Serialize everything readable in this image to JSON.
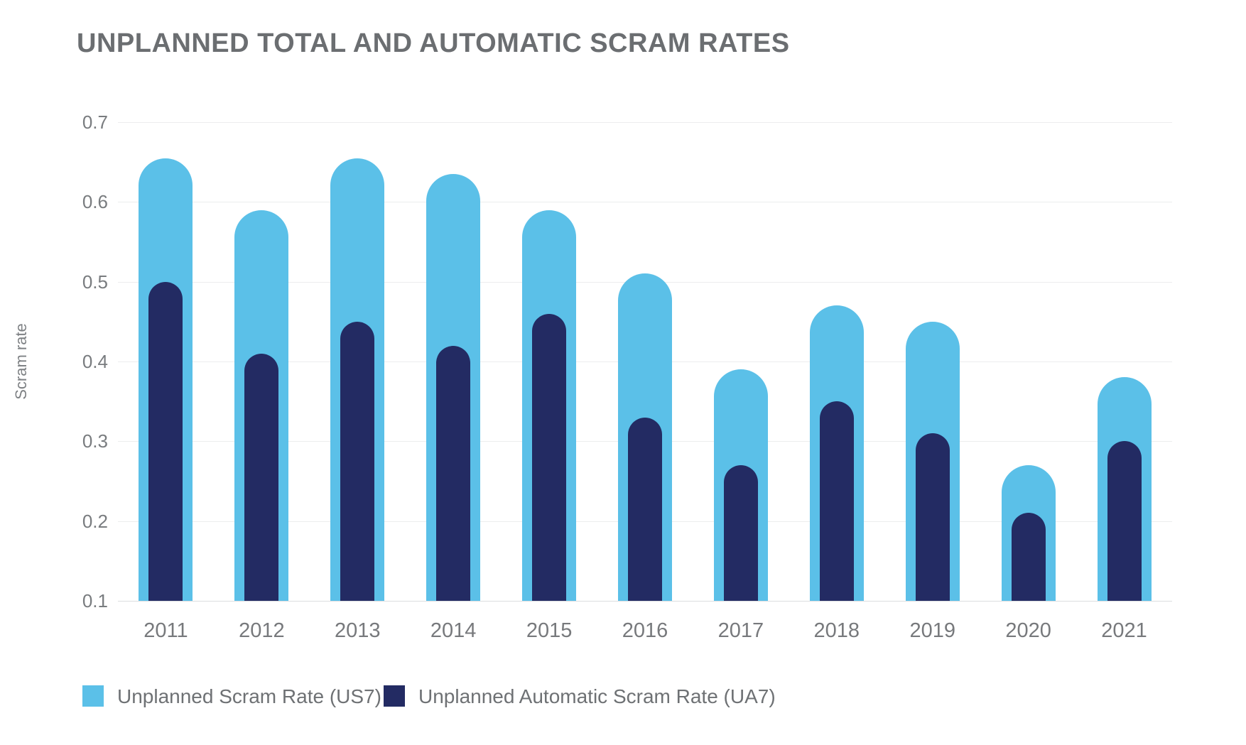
{
  "title": "UNPLANNED TOTAL AND AUTOMATIC SCRAM RATES",
  "colors": {
    "us7_bar": "#5BC0E8",
    "ua7_bar": "#232B63",
    "title_text": "#6B6E71",
    "axis_text": "#797C7F",
    "gridline": "#ECEDEE"
  },
  "y_axis": {
    "label": "Scram rate",
    "tick_labels": [
      "0.7",
      "0.6",
      "0.5",
      "0.4",
      "0.3",
      "0.2",
      "0.1"
    ]
  },
  "legend": {
    "items": [
      {
        "id": "us7",
        "label": "Unplanned Scram Rate (US7)",
        "color": "#5BC0E8",
        "offset_left": 0
      },
      {
        "id": "ua7",
        "label": "Unplanned Automatic Scram Rate (UA7)",
        "color": "#232B63",
        "offset_left": 424
      }
    ]
  },
  "chart_data": {
    "type": "bar",
    "title": "UNPLANNED TOTAL AND AUTOMATIC SCRAM RATES",
    "categories": [
      "2011",
      "2012",
      "2013",
      "2014",
      "2015",
      "2016",
      "2017",
      "2018",
      "2019",
      "2020",
      "2021"
    ],
    "series": [
      {
        "name": "Unplanned Scram Rate (US7)",
        "color": "#5BC0E8",
        "values": [
          0.655,
          0.59,
          0.655,
          0.635,
          0.59,
          0.51,
          0.39,
          0.47,
          0.45,
          0.27,
          0.38
        ]
      },
      {
        "name": "Unplanned Automatic Scram Rate (UA7)",
        "color": "#232B63",
        "values": [
          0.5,
          0.41,
          0.45,
          0.42,
          0.46,
          0.33,
          0.27,
          0.35,
          0.31,
          0.21,
          0.3
        ]
      }
    ],
    "xlabel": "",
    "ylabel": "Scram rate",
    "ylim": [
      0.1,
      0.7
    ],
    "y_tick_step": 0.1,
    "grid": true,
    "legend_position": "bottom-left",
    "bar_style": "overlaid (not stacked), rounded top caps, baseline at 0.1"
  }
}
